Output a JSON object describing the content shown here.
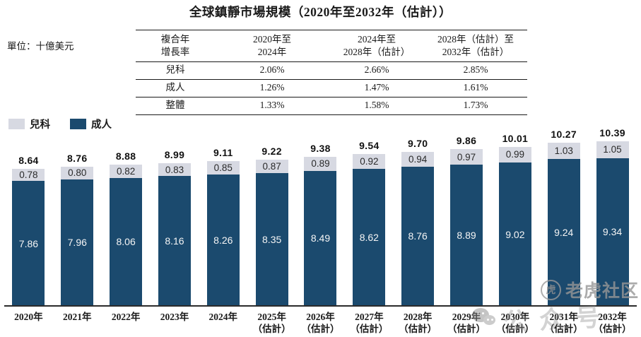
{
  "page": {
    "title": "全球鎮靜市場規模（2020年至2032年（估計））",
    "unit_label": "單位：十億美元"
  },
  "cagr_table": {
    "corner_header": [
      "複合年",
      "增長率"
    ],
    "col_headers": [
      [
        "2020年至",
        "2024年"
      ],
      [
        "2024年至",
        "2028年（估計）"
      ],
      [
        "2028年（估計）至",
        "2032年（估計）"
      ]
    ],
    "rows": [
      {
        "label": "兒科",
        "values": [
          "2.06%",
          "2.66%",
          "2.85%"
        ]
      },
      {
        "label": "成人",
        "values": [
          "1.26%",
          "1.47%",
          "1.61%"
        ]
      },
      {
        "label": "整體",
        "values": [
          "1.33%",
          "1.58%",
          "1.73%"
        ]
      }
    ]
  },
  "legend": [
    {
      "label": "兒科",
      "color": "#d7d9e2"
    },
    {
      "label": "成人",
      "color": "#1b4a6e"
    }
  ],
  "chart_data": {
    "type": "bar",
    "stacked": true,
    "title": "全球鎮靜市場規模（2020年至2032年（估計））",
    "unit": "十億美元",
    "grid": false,
    "legend_position": "top-left",
    "ylim": [
      0,
      11.2
    ],
    "categories": [
      {
        "year": "2020年",
        "note": ""
      },
      {
        "year": "2021年",
        "note": ""
      },
      {
        "year": "2022年",
        "note": ""
      },
      {
        "year": "2023年",
        "note": ""
      },
      {
        "year": "2024年",
        "note": ""
      },
      {
        "year": "2025年",
        "note": "（估計）"
      },
      {
        "year": "2026年",
        "note": "（估計）"
      },
      {
        "year": "2027年",
        "note": "（估計）"
      },
      {
        "year": "2028年",
        "note": "（估計）"
      },
      {
        "year": "2029年",
        "note": "（估計）"
      },
      {
        "year": "2030年",
        "note": "（估計）"
      },
      {
        "year": "2031年",
        "note": "（估計）"
      },
      {
        "year": "2032年",
        "note": "（估計）"
      }
    ],
    "series": [
      {
        "name": "兒科",
        "color": "#d7d9e2",
        "values": [
          0.78,
          0.8,
          0.82,
          0.83,
          0.85,
          0.87,
          0.89,
          0.92,
          0.94,
          0.97,
          0.99,
          1.03,
          1.05
        ]
      },
      {
        "name": "成人",
        "color": "#1b4a6e",
        "values": [
          7.86,
          7.96,
          8.06,
          8.16,
          8.26,
          8.35,
          8.49,
          8.62,
          8.76,
          8.89,
          9.02,
          9.24,
          9.34
        ]
      }
    ],
    "totals": [
      8.64,
      8.76,
      8.88,
      8.99,
      9.11,
      9.22,
      9.38,
      9.54,
      9.7,
      9.86,
      10.01,
      10.27,
      10.39
    ]
  },
  "watermark": {
    "community_name": "老虎社区",
    "account_type": "公众号",
    "logo_char": "虎"
  }
}
